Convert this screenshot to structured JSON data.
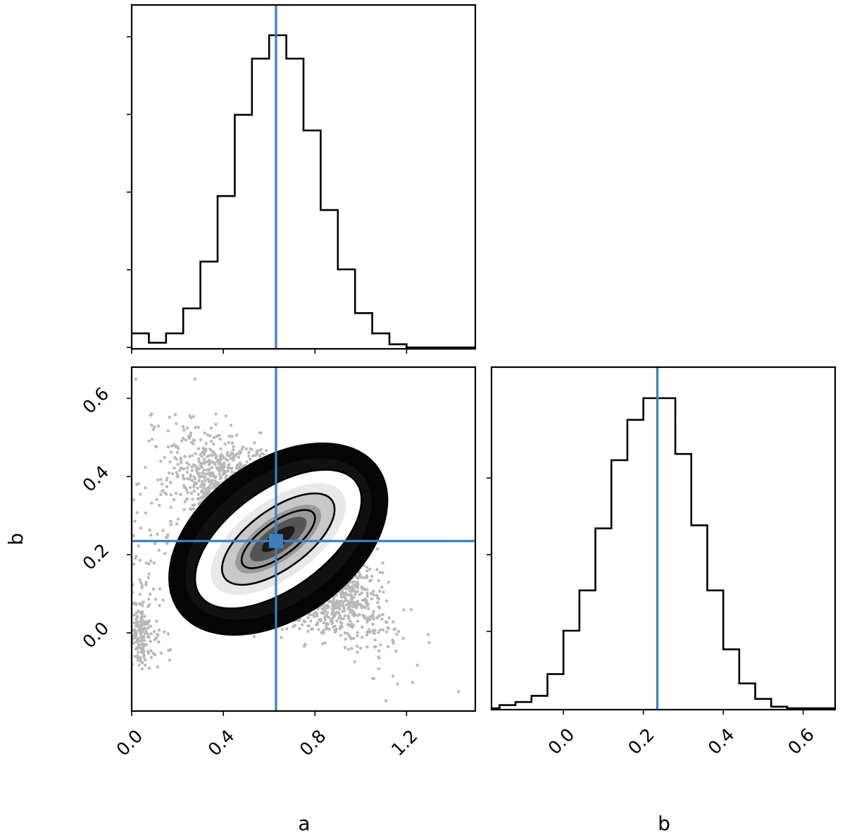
{
  "chart_data": {
    "type": "corner",
    "parameters": [
      "a",
      "b"
    ],
    "truth": {
      "a": 0.63,
      "b": 0.235
    },
    "panels": [
      {
        "id": "hist-a",
        "type": "histogram",
        "parameter": "a",
        "xlim": [
          0.0,
          1.5
        ],
        "bin_edges": [
          0.0,
          0.075,
          0.15,
          0.225,
          0.3,
          0.375,
          0.45,
          0.525,
          0.6,
          0.675,
          0.75,
          0.825,
          0.9,
          0.975,
          1.05,
          1.125,
          1.2,
          1.275,
          1.35,
          1.425,
          1.5
        ],
        "counts": [
          0.045,
          0.015,
          0.045,
          0.125,
          0.275,
          0.485,
          0.745,
          0.925,
          1.0,
          0.925,
          0.695,
          0.44,
          0.25,
          0.11,
          0.045,
          0.01,
          0.0,
          0.0,
          0.0,
          0.0
        ],
        "ytick_count": 5
      },
      {
        "id": "hist-b",
        "type": "histogram",
        "parameter": "b",
        "xlim": [
          -0.18,
          0.68
        ],
        "bin_edges": [
          -0.16,
          -0.12,
          -0.08,
          -0.04,
          0.0,
          0.04,
          0.08,
          0.12,
          0.16,
          0.2,
          0.24,
          0.28,
          0.32,
          0.36,
          0.4,
          0.44,
          0.48,
          0.52,
          0.56,
          0.6
        ],
        "counts": [
          0.01,
          0.02,
          0.04,
          0.11,
          0.25,
          0.38,
          0.58,
          0.8,
          0.93,
          1.0,
          1.0,
          0.82,
          0.59,
          0.38,
          0.19,
          0.08,
          0.03,
          0.005,
          0.0
        ],
        "ytick_count": 3
      },
      {
        "id": "joint-ab",
        "type": "joint-density",
        "x": "a",
        "y": "b",
        "xlim": [
          0.0,
          1.5
        ],
        "ylim": [
          -0.2,
          0.68
        ],
        "center": [
          0.64,
          0.24
        ],
        "correlation": -0.72,
        "contours": [
          {
            "level": "inner",
            "a_halfwidth": 0.12,
            "b_halfwidth": 0.08
          },
          {
            "level": "middle",
            "a_halfwidth": 0.2,
            "b_halfwidth": 0.12
          },
          {
            "level": "outer",
            "a_halfwidth": 0.35,
            "b_halfwidth": 0.2
          }
        ]
      }
    ],
    "axes": {
      "a": {
        "ticks": [
          0.0,
          0.4,
          0.8,
          1.2
        ],
        "tick_labels": [
          "0.0",
          "0.4",
          "0.8",
          "1.2"
        ],
        "label": "a"
      },
      "b_vertical": {
        "ticks": [
          0.0,
          0.2,
          0.4,
          0.6
        ],
        "tick_labels": [
          "0.0",
          "0.2",
          "0.4",
          "0.6"
        ],
        "label": "b"
      },
      "b_horizontal": {
        "ticks": [
          0.0,
          0.2,
          0.4,
          0.6
        ],
        "tick_labels": [
          "0.0",
          "0.2",
          "0.4",
          "0.6"
        ],
        "label": "b"
      }
    },
    "colors": {
      "truth": "#3f7fb9",
      "hist": "#000000",
      "density": "#000000"
    }
  }
}
